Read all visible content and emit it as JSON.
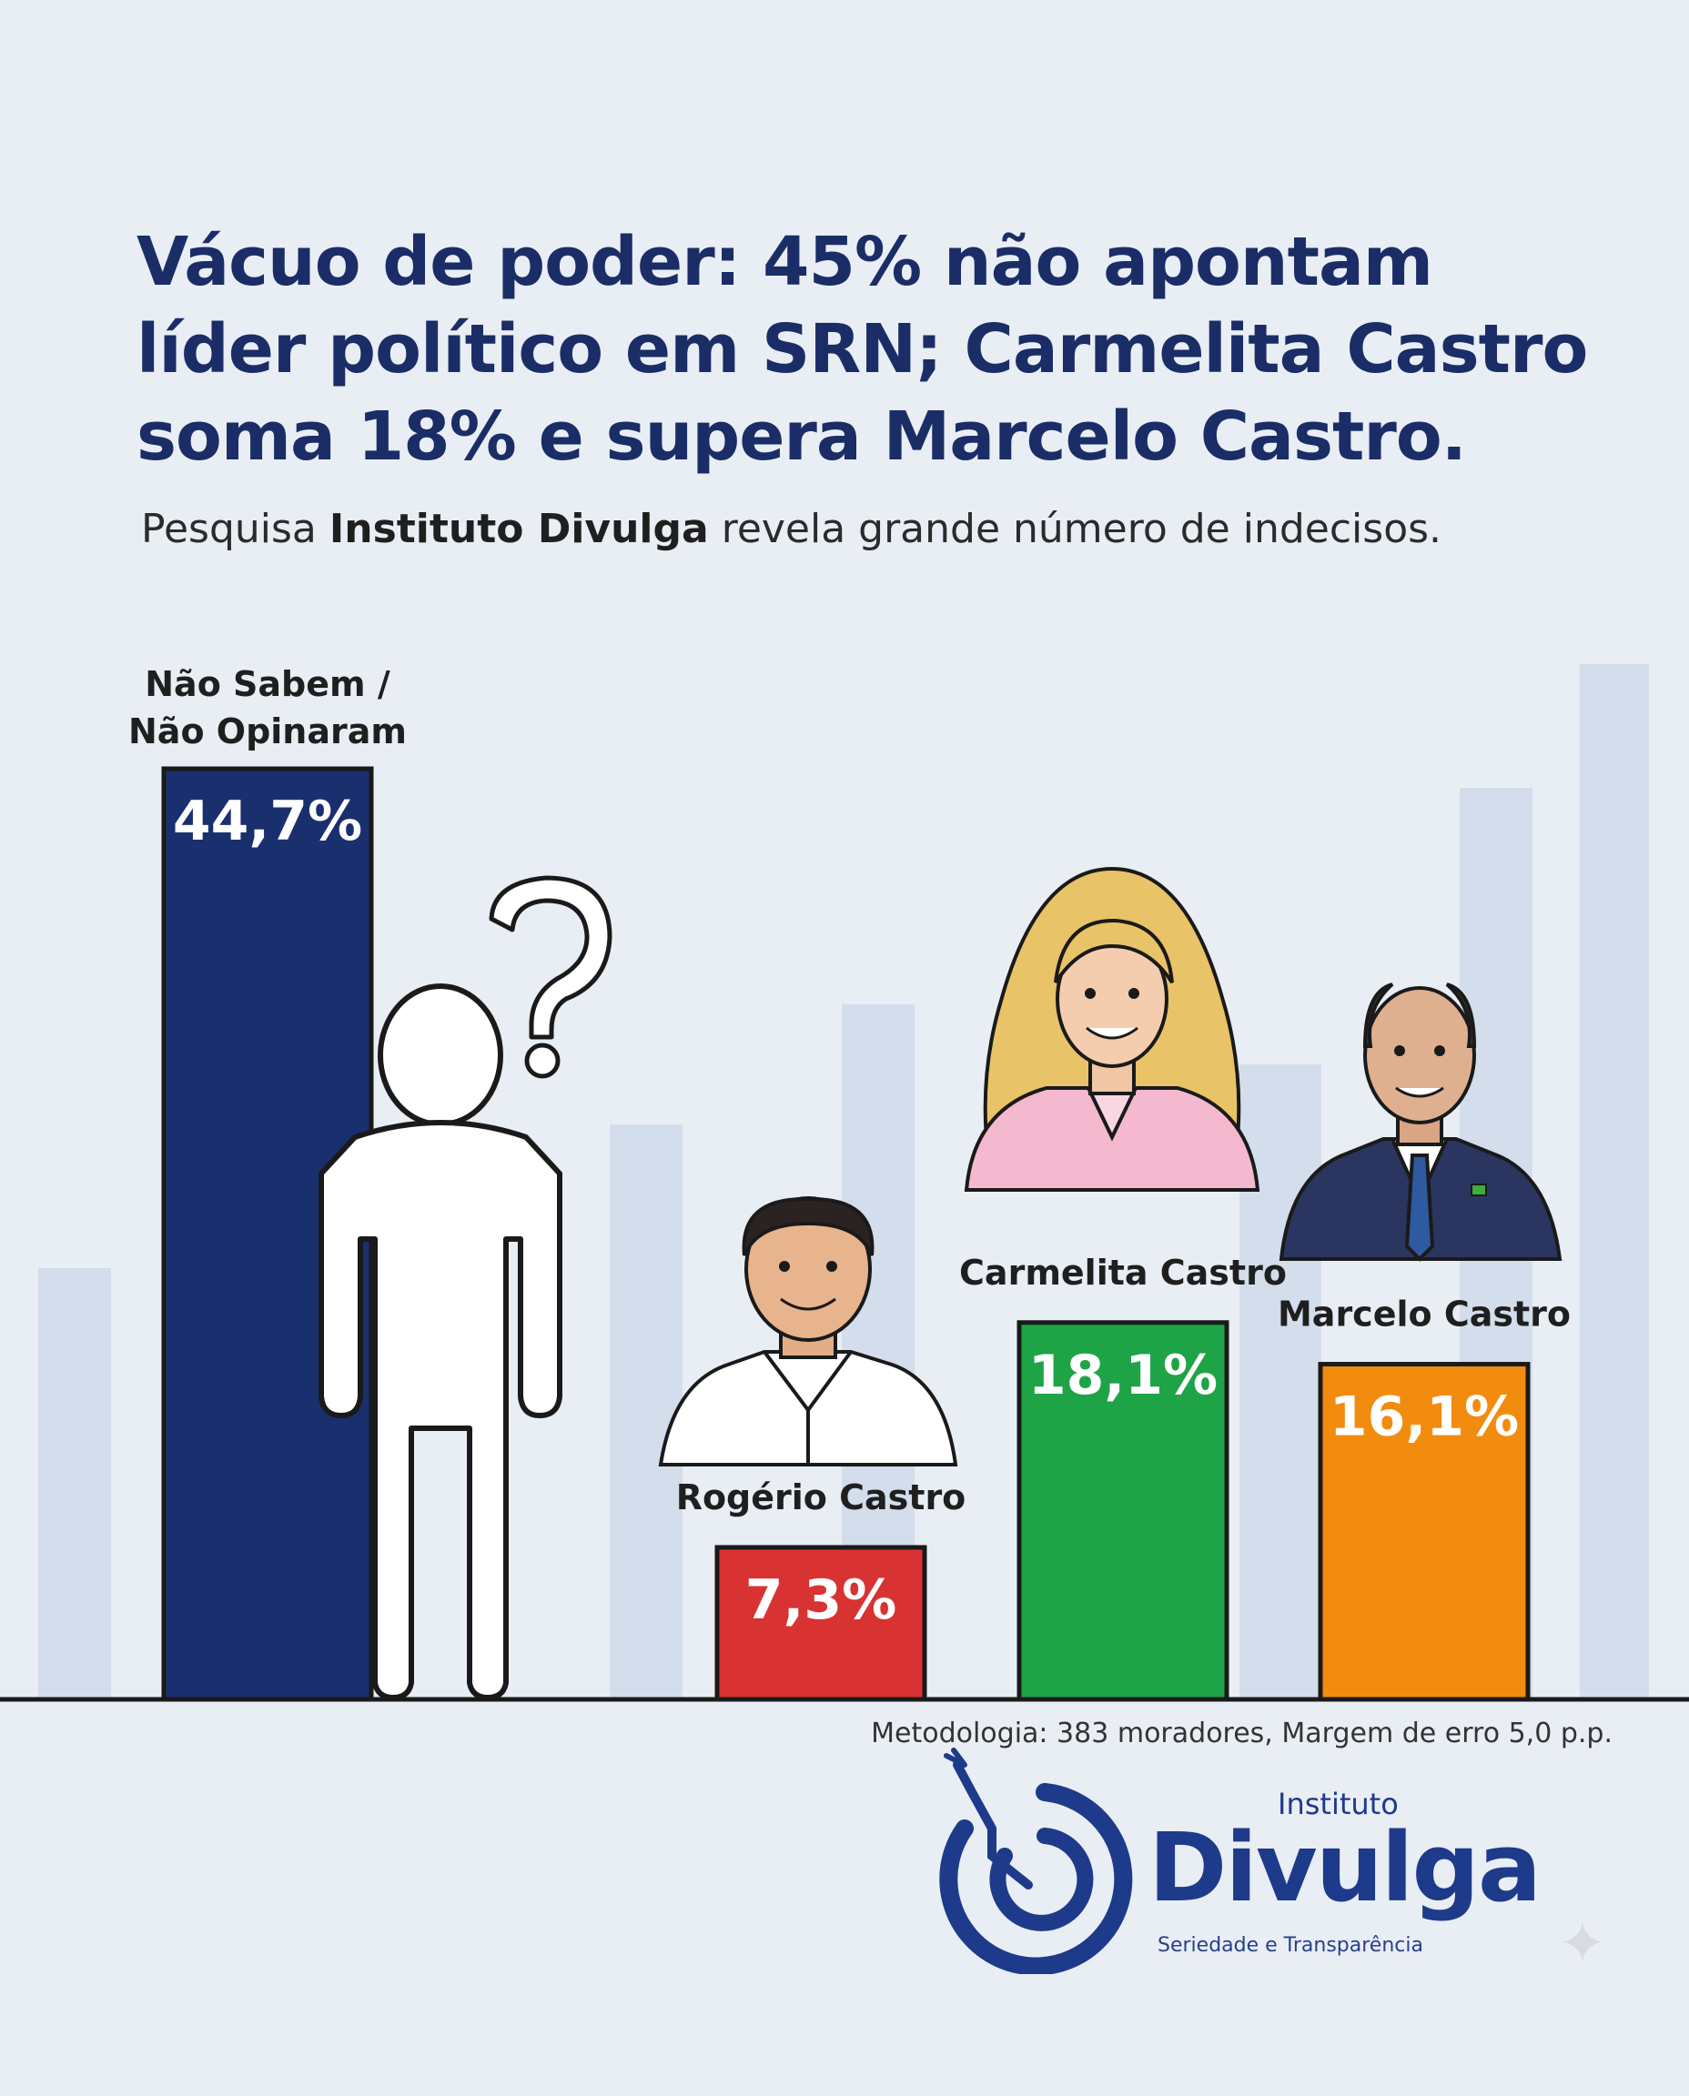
{
  "headline": {
    "line1": "Vácuo de poder: 45% não apontam",
    "line2": "líder político em SRN; Carmelita Castro",
    "line3": "soma 18% e supera Marcelo Castro."
  },
  "subtitle": {
    "pre": "Pesquisa ",
    "bold": "Instituto Divulga",
    "post": " revela grande número de indecisos."
  },
  "chart_data": {
    "type": "bar",
    "categories": [
      "Não Sabem / Não Opinaram",
      "Rogério Castro",
      "Carmelita Castro",
      "Marcelo Castro"
    ],
    "label_lines": [
      [
        "Não Sabem /",
        "Não Opinaram"
      ],
      [
        "Rogério Castro"
      ],
      [
        "Carmelita Castro"
      ],
      [
        "Marcelo Castro"
      ]
    ],
    "values": [
      44.7,
      7.3,
      18.1,
      16.1
    ],
    "value_labels": [
      "44,7%",
      "7,3%",
      "18,1%",
      "16,1%"
    ],
    "colors": [
      "#1a2f6e",
      "#d93232",
      "#1fa347",
      "#f28c0f"
    ],
    "ylim": [
      0,
      50
    ],
    "grid": false
  },
  "logo": {
    "line1": "Instituto",
    "line2": "Divulga",
    "tagline": "Seriedade e Transparência"
  },
  "methodology": "Metodologia: 383 moradores, Margem de erro 5,0 p.p.",
  "icons": {
    "person": "question-person-icon",
    "logo": "target-dart-logo-icon",
    "sparkle": "sparkle-icon"
  }
}
